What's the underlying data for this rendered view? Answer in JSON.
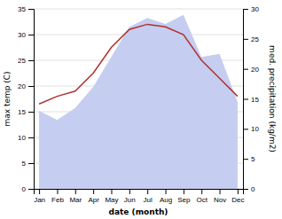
{
  "chart_data": {
    "type": "line",
    "categories": [
      "Jan",
      "Feb",
      "Mar",
      "Apr",
      "May",
      "Jun",
      "Jul",
      "Aug",
      "Sep",
      "Oct",
      "Nov",
      "Dec"
    ],
    "series": [
      {
        "type": "area",
        "axis": "y2",
        "color": "#c5cdf0",
        "values": [
          13.0,
          11.5,
          13.5,
          17.0,
          22.0,
          27.0,
          28.5,
          27.5,
          29.0,
          22.0,
          22.5,
          14.5
        ]
      },
      {
        "type": "line",
        "color": "#b03030",
        "values": [
          16.5,
          18.0,
          19.0,
          22.5,
          27.5,
          31.0,
          32.0,
          31.5,
          30.0,
          25.0,
          21.5,
          18.0
        ]
      }
    ],
    "xlabel": "date (month)",
    "ylabel": "max temp (C)",
    "y2label": "med. precipitation (kg/m2)",
    "ylim": [
      0,
      35
    ],
    "yticks": [
      0,
      5,
      10,
      15,
      20,
      25,
      30,
      35
    ],
    "y2lim": [
      0,
      30
    ],
    "y2ticks": [
      0,
      5,
      10,
      15,
      20,
      25,
      30
    ],
    "grid": true
  }
}
